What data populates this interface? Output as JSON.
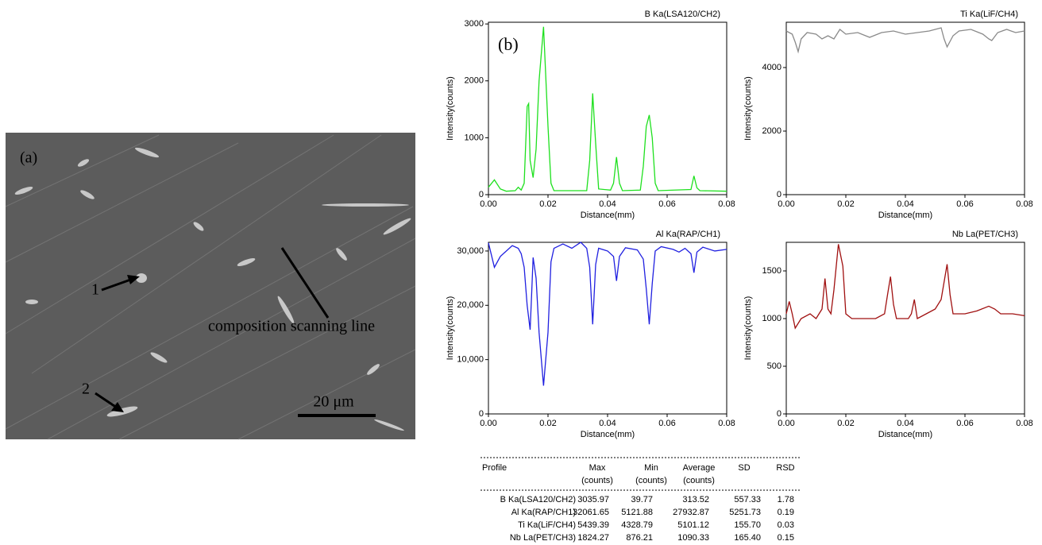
{
  "image": {
    "panel_label": "(a)",
    "marker_1": "1",
    "marker_2": "2",
    "line_label": "composition scanning line",
    "scale_bar": "20 μm"
  },
  "chart_data": [
    {
      "type": "line",
      "title": "B Ka(LSA120/CH2)",
      "annotation": "(b)",
      "xlabel": "Distance(mm)",
      "ylabel": "Intensity(counts)",
      "color": "#1ee01e",
      "xlim": [
        0,
        0.08
      ],
      "ylim": [
        0,
        3030
      ],
      "xticks": [
        {
          "value": 0,
          "label": "0.00"
        },
        {
          "value": 0.02,
          "label": "0.02"
        },
        {
          "value": 0.04,
          "label": "0.04"
        },
        {
          "value": 0.06,
          "label": "0.06"
        },
        {
          "value": 0.08,
          "label": "0.08"
        }
      ],
      "yticks": [
        0,
        1000,
        2000,
        3000
      ],
      "x": [
        0,
        0.002,
        0.004,
        0.006,
        0.009,
        0.01,
        0.011,
        0.012,
        0.013,
        0.0135,
        0.014,
        0.015,
        0.016,
        0.017,
        0.0185,
        0.02,
        0.021,
        0.022,
        0.033,
        0.034,
        0.035,
        0.036,
        0.037,
        0.041,
        0.042,
        0.043,
        0.044,
        0.045,
        0.051,
        0.052,
        0.053,
        0.054,
        0.055,
        0.056,
        0.057,
        0.068,
        0.069,
        0.07,
        0.071,
        0.08
      ],
      "values": [
        130,
        260,
        100,
        60,
        70,
        130,
        80,
        200,
        1550,
        1600,
        600,
        300,
        800,
        2000,
        2950,
        1200,
        200,
        70,
        70,
        600,
        1780,
        900,
        100,
        80,
        200,
        660,
        200,
        70,
        80,
        500,
        1200,
        1400,
        1000,
        200,
        70,
        90,
        330,
        120,
        70,
        60
      ]
    },
    {
      "type": "line",
      "title": "Ti Ka(LiF/CH4)",
      "xlabel": "Distance(mm)",
      "ylabel": "Intensity(counts)",
      "color": "#8a8a8a",
      "xlim": [
        0,
        0.08
      ],
      "ylim": [
        0,
        5425
      ],
      "xticks": [
        {
          "value": 0,
          "label": "0.00"
        },
        {
          "value": 0.02,
          "label": "0.02"
        },
        {
          "value": 0.04,
          "label": "0.04"
        },
        {
          "value": 0.06,
          "label": "0.06"
        },
        {
          "value": 0.08,
          "label": "0.08"
        }
      ],
      "yticks": [
        0,
        2000,
        4000
      ],
      "x": [
        0,
        0.002,
        0.003,
        0.004,
        0.005,
        0.007,
        0.01,
        0.012,
        0.014,
        0.016,
        0.018,
        0.02,
        0.024,
        0.028,
        0.032,
        0.036,
        0.04,
        0.044,
        0.048,
        0.05,
        0.052,
        0.053,
        0.054,
        0.056,
        0.058,
        0.062,
        0.066,
        0.068,
        0.069,
        0.071,
        0.074,
        0.077,
        0.08
      ],
      "values": [
        5150,
        5050,
        4800,
        4500,
        4900,
        5100,
        5050,
        4900,
        5000,
        4900,
        5200,
        5050,
        5100,
        4950,
        5100,
        5150,
        5050,
        5100,
        5150,
        5200,
        5250,
        4900,
        4650,
        5000,
        5150,
        5200,
        5050,
        4900,
        4850,
        5100,
        5200,
        5100,
        5150
      ]
    },
    {
      "type": "line",
      "title": "Al Ka(RAP/CH1)",
      "xlabel": "Distance(mm)",
      "ylabel": "Intensity(counts)",
      "color": "#2020e0",
      "xlim": [
        0,
        0.08
      ],
      "ylim": [
        0,
        31600
      ],
      "xticks": [
        {
          "value": 0,
          "label": "0.00"
        },
        {
          "value": 0.02,
          "label": "0.02"
        },
        {
          "value": 0.04,
          "label": "0.04"
        },
        {
          "value": 0.06,
          "label": "0.06"
        },
        {
          "value": 0.08,
          "label": "0.08"
        }
      ],
      "yticks": [
        0,
        {
          "value": 10000,
          "label": "10,000"
        },
        {
          "value": 20000,
          "label": "20,000"
        },
        {
          "value": 30000,
          "label": "30,000"
        }
      ],
      "x": [
        0,
        0.002,
        0.004,
        0.008,
        0.01,
        0.011,
        0.012,
        0.013,
        0.014,
        0.0145,
        0.015,
        0.016,
        0.017,
        0.0185,
        0.02,
        0.021,
        0.022,
        0.025,
        0.028,
        0.031,
        0.033,
        0.034,
        0.035,
        0.036,
        0.037,
        0.04,
        0.042,
        0.043,
        0.044,
        0.046,
        0.05,
        0.052,
        0.053,
        0.054,
        0.055,
        0.056,
        0.058,
        0.062,
        0.064,
        0.066,
        0.068,
        0.069,
        0.07,
        0.072,
        0.076,
        0.08
      ],
      "values": [
        31500,
        27000,
        29000,
        31000,
        30500,
        29500,
        27000,
        20000,
        15500,
        22000,
        28800,
        25000,
        15000,
        5200,
        15000,
        28000,
        30500,
        31300,
        30500,
        31600,
        30500,
        27000,
        16500,
        27500,
        30500,
        30000,
        29000,
        24500,
        29000,
        30600,
        30200,
        28500,
        23000,
        16500,
        24000,
        30000,
        30800,
        30300,
        29800,
        30500,
        29500,
        26000,
        29800,
        30700,
        30000,
        30300
      ]
    },
    {
      "type": "line",
      "title": "Nb La(PET/CH3)",
      "xlabel": "Distance(mm)",
      "ylabel": "Intensity(counts)",
      "color": "#a01010",
      "xlim": [
        0,
        0.08
      ],
      "ylim": [
        0,
        1800
      ],
      "xticks": [
        {
          "value": 0,
          "label": "0.00"
        },
        {
          "value": 0.02,
          "label": "0.02"
        },
        {
          "value": 0.04,
          "label": "0.04"
        },
        {
          "value": 0.06,
          "label": "0.06"
        },
        {
          "value": 0.08,
          "label": "0.08"
        }
      ],
      "yticks": [
        0,
        500,
        1000,
        1500
      ],
      "x": [
        0,
        0.001,
        0.002,
        0.003,
        0.005,
        0.008,
        0.01,
        0.012,
        0.013,
        0.014,
        0.015,
        0.016,
        0.0175,
        0.019,
        0.02,
        0.022,
        0.03,
        0.033,
        0.034,
        0.035,
        0.036,
        0.037,
        0.041,
        0.042,
        0.043,
        0.044,
        0.047,
        0.05,
        0.052,
        0.054,
        0.055,
        0.056,
        0.06,
        0.064,
        0.068,
        0.07,
        0.072,
        0.076,
        0.08
      ],
      "values": [
        1050,
        1180,
        1050,
        900,
        1000,
        1050,
        1000,
        1100,
        1420,
        1100,
        1050,
        1300,
        1780,
        1550,
        1050,
        1000,
        1000,
        1050,
        1250,
        1440,
        1150,
        1000,
        1000,
        1050,
        1200,
        1000,
        1050,
        1100,
        1200,
        1570,
        1250,
        1050,
        1050,
        1080,
        1130,
        1100,
        1050,
        1050,
        1030
      ]
    }
  ],
  "table": {
    "header": [
      [
        "Profile"
      ],
      [
        "Max",
        "(counts)"
      ],
      [
        "Min",
        "(counts)"
      ],
      [
        "Average",
        "(counts)"
      ],
      [
        "SD"
      ],
      [
        "RSD"
      ]
    ],
    "rows": [
      [
        "B Ka(LSA120/CH2)",
        "3035.97",
        "39.77",
        "313.52",
        "557.33",
        "1.78"
      ],
      [
        "Al Ka(RAP/CH1)",
        "32061.65",
        "5121.88",
        "27932.87",
        "5251.73",
        "0.19"
      ],
      [
        "Ti Ka(LiF/CH4)",
        "5439.39",
        "4328.79",
        "5101.12",
        "155.70",
        "0.03"
      ],
      [
        "Nb La(PET/CH3)",
        "1824.27",
        "876.21",
        "1090.33",
        "165.40",
        "0.15"
      ]
    ]
  }
}
